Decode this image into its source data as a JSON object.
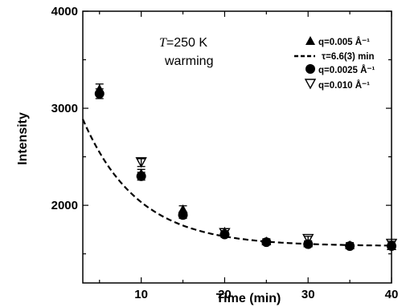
{
  "chart_data": {
    "type": "scatter",
    "xlabel": "Time (min)",
    "ylabel": "Intensity",
    "xlim": [
      3,
      40
    ],
    "ylim": [
      1200,
      4000
    ],
    "xticks": [
      10,
      20,
      30,
      40
    ],
    "yticks": [
      2000,
      3000,
      4000
    ],
    "annotation_T": "T",
    "annotation_temp": "=250 K",
    "annotation_mode": "warming",
    "legend_position": "top-right",
    "series": [
      {
        "name": "q=0.005 Å⁻¹",
        "marker": "triangle-up",
        "x": [
          5,
          10,
          15,
          20,
          25,
          30,
          35,
          40
        ],
        "y": [
          3200,
          2330,
          1960,
          1730,
          1630,
          1610,
          1590,
          1580
        ],
        "yerr": [
          50,
          40,
          35,
          30,
          25,
          25,
          25,
          25
        ]
      },
      {
        "name": "τ=6.6(3) min",
        "line": "dashed",
        "fit": {
          "A": 2060,
          "tau": 6.6,
          "C": 1580
        }
      },
      {
        "name": "q=0.0025 Å⁻¹",
        "marker": "circle",
        "x": [
          5,
          10,
          15,
          20,
          25,
          30,
          35,
          40
        ],
        "y": [
          3150,
          2300,
          1900,
          1700,
          1620,
          1600,
          1580,
          1580
        ],
        "yerr": [
          50,
          40,
          35,
          30,
          25,
          25,
          25,
          25
        ]
      },
      {
        "name": "q=0.010 Å⁻¹",
        "marker": "triangle-down-open",
        "x": [
          10,
          20,
          30,
          40
        ],
        "y": [
          2440,
          1710,
          1650,
          1600
        ],
        "yerr": [
          40,
          30,
          30,
          30
        ]
      }
    ]
  }
}
